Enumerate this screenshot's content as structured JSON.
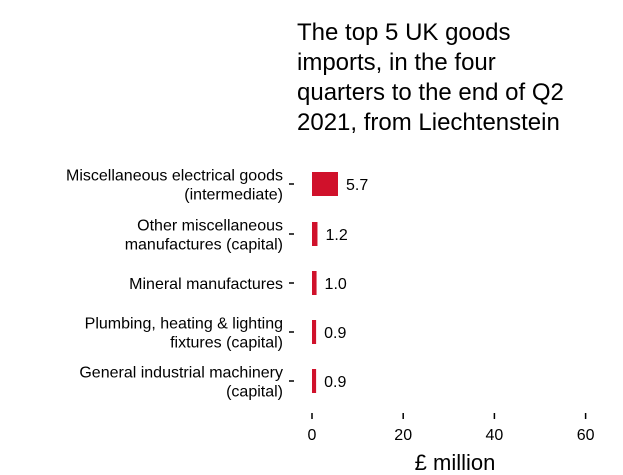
{
  "chart_data": {
    "type": "bar",
    "orientation": "horizontal",
    "title_lines": [
      "The top 5 UK goods",
      "imports, in the four",
      "quarters to the end of Q2",
      "2021, from Liechtenstein"
    ],
    "categories": [
      [
        "Miscellaneous electrical goods",
        "(intermediate)"
      ],
      [
        "Other miscellaneous",
        "manufactures (capital)"
      ],
      [
        "Mineral manufactures"
      ],
      [
        "Plumbing, heating & lighting",
        "fixtures (capital)"
      ],
      [
        "General industrial machinery",
        "(capital)"
      ]
    ],
    "values": [
      5.7,
      1.2,
      1.0,
      0.9,
      0.9
    ],
    "value_labels": [
      "5.7",
      "1.2",
      "1.0",
      "0.9",
      "0.9"
    ],
    "xlabel": "£ million",
    "xlim": [
      0,
      65
    ],
    "xticks": [
      0,
      20,
      40,
      60
    ],
    "xtick_labels": [
      "0",
      "20",
      "40",
      "60"
    ],
    "grid": false,
    "bar_color": "#d0112b"
  }
}
